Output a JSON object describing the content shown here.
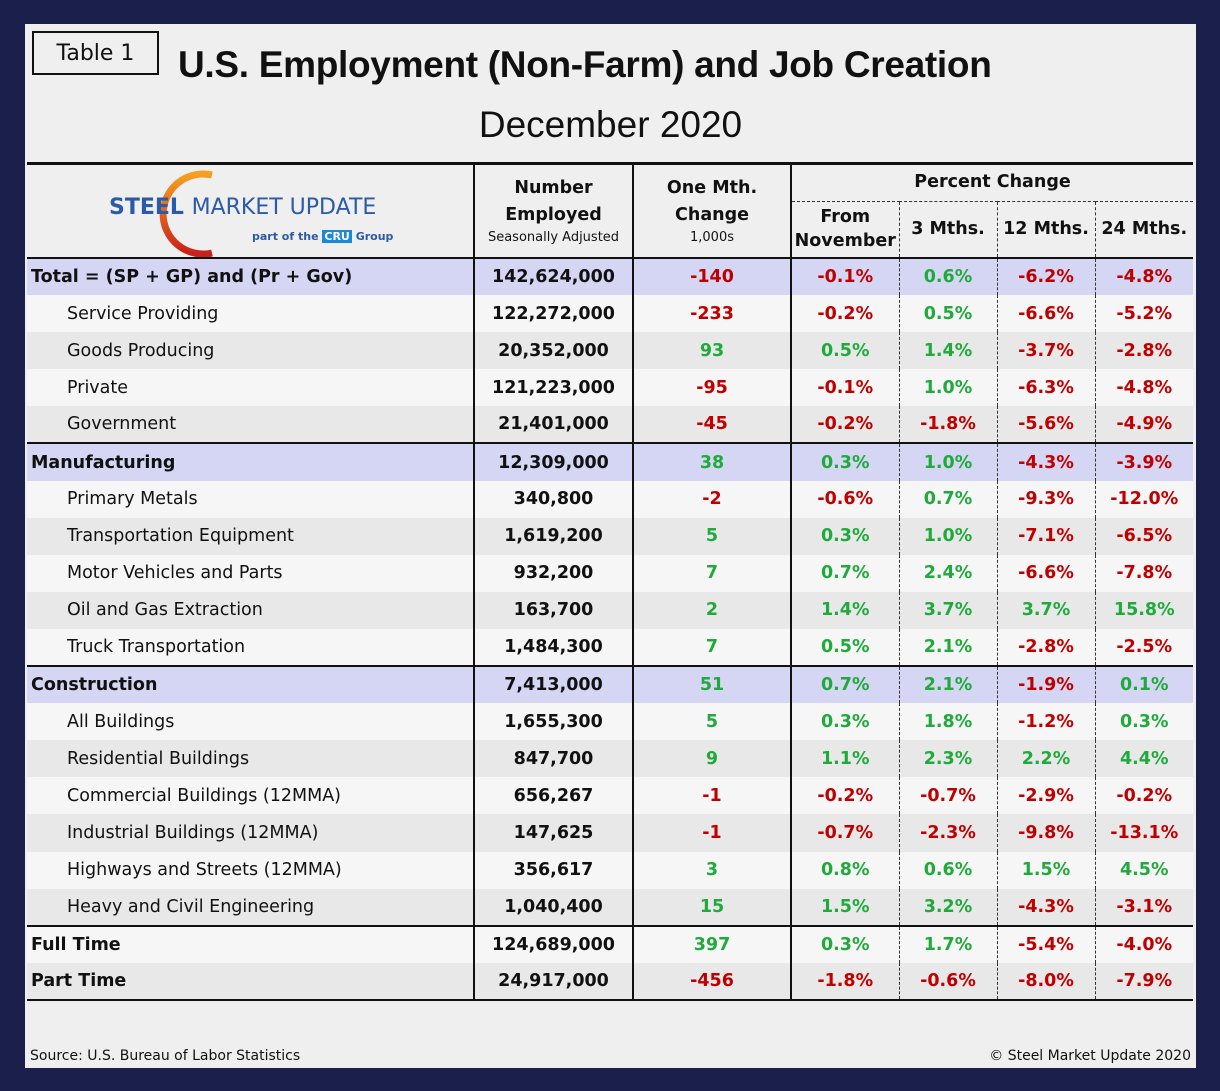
{
  "tag": "Table 1",
  "title": "U.S. Employment (Non-Farm) and Job Creation",
  "subtitle": "December 2020",
  "logo": {
    "text_bold": "STEEL",
    "text_rest": "MARKET UPDATE",
    "tagline_pre": "part of the",
    "tagline_brand": "CRU",
    "tagline_post": "Group",
    "colors": {
      "blue": "#2a5aa8",
      "orange": "#f07a1a",
      "cru": "#1e88d8"
    }
  },
  "headers": {
    "number": "Number Employed",
    "number_sub": "Seasonally Adjusted",
    "change": "One Mth. Change",
    "change_sub": "1,000s",
    "pct_group": "Percent Change",
    "pct": [
      "From November",
      "3 Mths.",
      "12 Mths.",
      "24 Mths."
    ]
  },
  "colors": {
    "negative": "#c00000",
    "positive": "#1faa3b",
    "section_bg": "#d4d6f3",
    "frame": "#1b1f4b"
  },
  "rows": [
    {
      "label": "Total = (SP + GP) and (Pr + Gov)",
      "type": "sec",
      "number": "142,624,000",
      "change": "-140",
      "pct": [
        "-0.1%",
        "0.6%",
        "-6.2%",
        "-4.8%"
      ]
    },
    {
      "label": "Service Providing",
      "type": "sub",
      "number": "122,272,000",
      "change": "-233",
      "pct": [
        "-0.2%",
        "0.5%",
        "-6.6%",
        "-5.2%"
      ]
    },
    {
      "label": "Goods Producing",
      "type": "sub",
      "number": "20,352,000",
      "change": "93",
      "pct": [
        "0.5%",
        "1.4%",
        "-3.7%",
        "-2.8%"
      ]
    },
    {
      "label": "Private",
      "type": "sub",
      "number": "121,223,000",
      "change": "-95",
      "pct": [
        "-0.1%",
        "1.0%",
        "-6.3%",
        "-4.8%"
      ]
    },
    {
      "label": "Government",
      "type": "sub",
      "number": "21,401,000",
      "change": "-45",
      "pct": [
        "-0.2%",
        "-1.8%",
        "-5.6%",
        "-4.9%"
      ]
    },
    {
      "label": "Manufacturing",
      "type": "sec",
      "number": "12,309,000",
      "change": "38",
      "pct": [
        "0.3%",
        "1.0%",
        "-4.3%",
        "-3.9%"
      ]
    },
    {
      "label": "Primary Metals",
      "type": "sub",
      "number": "340,800",
      "change": "-2",
      "pct": [
        "-0.6%",
        "0.7%",
        "-9.3%",
        "-12.0%"
      ]
    },
    {
      "label": "Transportation Equipment",
      "type": "sub",
      "number": "1,619,200",
      "change": "5",
      "pct": [
        "0.3%",
        "1.0%",
        "-7.1%",
        "-6.5%"
      ]
    },
    {
      "label": "Motor Vehicles and Parts",
      "type": "sub",
      "number": "932,200",
      "change": "7",
      "pct": [
        "0.7%",
        "2.4%",
        "-6.6%",
        "-7.8%"
      ]
    },
    {
      "label": "Oil and Gas Extraction",
      "type": "sub",
      "number": "163,700",
      "change": "2",
      "pct": [
        "1.4%",
        "3.7%",
        "3.7%",
        "15.8%"
      ]
    },
    {
      "label": "Truck Transportation",
      "type": "sub",
      "number": "1,484,300",
      "change": "7",
      "pct": [
        "0.5%",
        "2.1%",
        "-2.8%",
        "-2.5%"
      ]
    },
    {
      "label": "Construction",
      "type": "sec",
      "number": "7,413,000",
      "change": "51",
      "pct": [
        "0.7%",
        "2.1%",
        "-1.9%",
        "0.1%"
      ]
    },
    {
      "label": "All Buildings",
      "type": "sub",
      "number": "1,655,300",
      "change": "5",
      "pct": [
        "0.3%",
        "1.8%",
        "-1.2%",
        "0.3%"
      ]
    },
    {
      "label": "Residential Buildings",
      "type": "sub",
      "number": "847,700",
      "change": "9",
      "pct": [
        "1.1%",
        "2.3%",
        "2.2%",
        "4.4%"
      ]
    },
    {
      "label": "Commercial Buildings (12MMA)",
      "type": "sub",
      "number": "656,267",
      "change": "-1",
      "pct": [
        "-0.2%",
        "-0.7%",
        "-2.9%",
        "-0.2%"
      ]
    },
    {
      "label": "Industrial Buildings (12MMA)",
      "type": "sub",
      "number": "147,625",
      "change": "-1",
      "pct": [
        "-0.7%",
        "-2.3%",
        "-9.8%",
        "-13.1%"
      ]
    },
    {
      "label": "Highways and Streets (12MMA)",
      "type": "sub",
      "number": "356,617",
      "change": "3",
      "pct": [
        "0.8%",
        "0.6%",
        "1.5%",
        "4.5%"
      ]
    },
    {
      "label": "Heavy and Civil Engineering",
      "type": "sub",
      "number": "1,040,400",
      "change": "15",
      "pct": [
        "1.5%",
        "3.2%",
        "-4.3%",
        "-3.1%"
      ]
    },
    {
      "label": "Full Time",
      "type": "bold",
      "number": "124,689,000",
      "change": "397",
      "pct": [
        "0.3%",
        "1.7%",
        "-5.4%",
        "-4.0%"
      ]
    },
    {
      "label": "Part Time",
      "type": "bold",
      "number": "24,917,000",
      "change": "-456",
      "pct": [
        "-1.8%",
        "-0.6%",
        "-8.0%",
        "-7.9%"
      ]
    }
  ],
  "footer": {
    "source": "Source: U.S. Bureau of Labor Statistics",
    "copyright": "© Steel Market Update 2020"
  }
}
